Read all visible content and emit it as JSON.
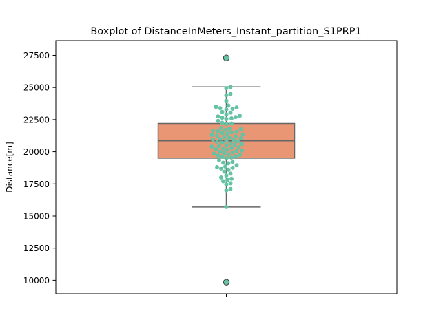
{
  "chart_data": {
    "type": "boxplot",
    "title": "Boxplot of DistanceInMeters_Instant_partition_S1PRP1",
    "xlabel": "",
    "ylabel": "Distance[m]",
    "ylim": [
      8950,
      28650
    ],
    "yticks": [
      10000,
      12500,
      15000,
      17500,
      20000,
      22500,
      25000,
      27500
    ],
    "ytick_labels": [
      "10000",
      "12500",
      "15000",
      "17500",
      "20000",
      "22500",
      "25000",
      "27500"
    ],
    "grid": false,
    "colors": {
      "box_fill": "#e99675",
      "box_edge": "#666666",
      "swarm_points": "#66c2a5",
      "outlier_fill": "#66c2a5",
      "outlier_edge": "#3d3d3d"
    },
    "box": {
      "whisker_low": 15700,
      "q1": 19500,
      "median": 20850,
      "q3": 22200,
      "whisker_high": 25050
    },
    "outliers": [
      27300,
      9850
    ],
    "swarm_values": [
      25050,
      24950,
      24500,
      24400,
      23950,
      23600,
      23500,
      23450,
      23400,
      23350,
      23300,
      23100,
      23050,
      22900,
      22800,
      22750,
      22700,
      22650,
      22600,
      22550,
      22400,
      22250,
      22200,
      22150,
      21850,
      21800,
      21750,
      21700,
      21650,
      21600,
      21550,
      21500,
      21450,
      21400,
      21350,
      21300,
      21250,
      21200,
      21150,
      21100,
      21050,
      21000,
      20950,
      20900,
      20850,
      20800,
      20750,
      20700,
      20650,
      20600,
      20550,
      20500,
      20450,
      20400,
      20350,
      20300,
      20250,
      20200,
      20150,
      20100,
      20050,
      20000,
      19950,
      19900,
      19850,
      19800,
      19750,
      19700,
      19650,
      19600,
      19550,
      19500,
      19350,
      19200,
      19150,
      19100,
      18950,
      18850,
      18800,
      18750,
      18700,
      18600,
      18450,
      18300,
      18150,
      18000,
      17900,
      17800,
      17700,
      17550,
      17450,
      17100,
      17000,
      15700
    ]
  }
}
